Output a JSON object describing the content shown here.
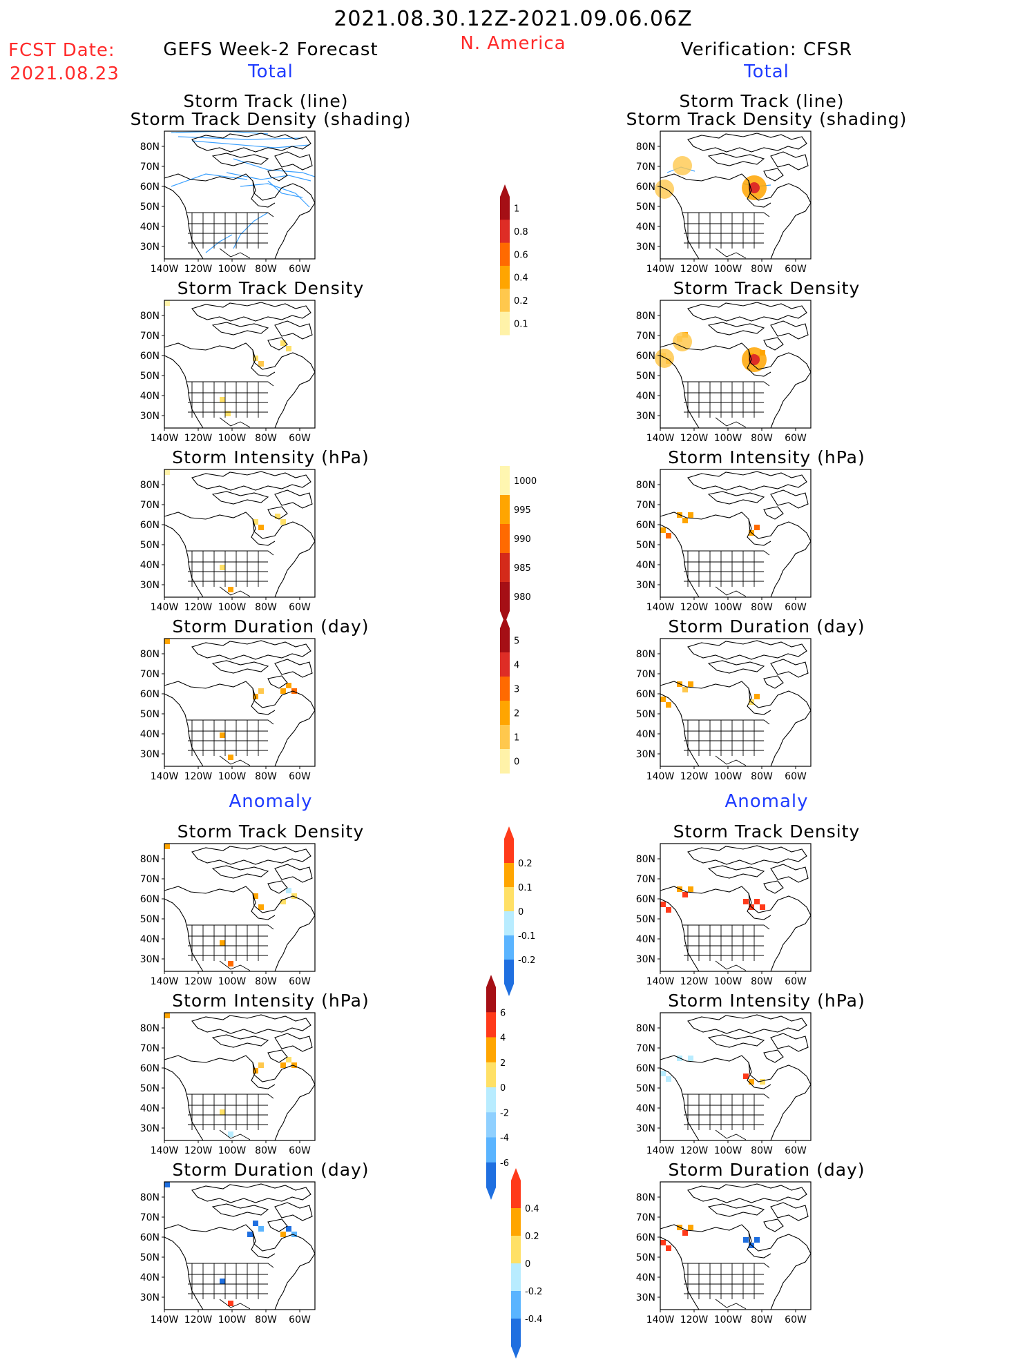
{
  "header": {
    "date_range": "2021.08.30.12Z-2021.09.06.06Z",
    "region": "N. America",
    "fcst_label": "FCST Date:",
    "fcst_date": "2021.08.23",
    "left_model": "GEFS Week-2 Forecast",
    "right_model": "Verification: CFSR",
    "total_label": "Total",
    "anomaly_label": "Anomaly"
  },
  "map_axes": {
    "lat_ticks": [
      "80N",
      "70N",
      "60N",
      "50N",
      "40N",
      "30N"
    ],
    "lon_ticks": [
      "140W",
      "120W",
      "100W",
      "80W",
      "60W"
    ]
  },
  "panel_titles": {
    "track_line": "Storm Track (line)",
    "track_shading": "Storm Track Density (shading)",
    "density": "Storm Track Density",
    "intensity": "Storm Intensity (hPa)",
    "duration": "Storm Duration (day)"
  },
  "colors": {
    "title_red": "#ff2a2a",
    "label_blue": "#1f3cff",
    "track_line": "#3aa0ff"
  },
  "chart_data": [
    {
      "type": "heatmap",
      "title": "Storm Track (line) / Storm Track Density (shading)",
      "column": "GEFS Week-2 Forecast",
      "section": "Total"
    },
    {
      "type": "heatmap",
      "title": "Storm Track Density",
      "column": "GEFS Week-2 Forecast",
      "section": "Total"
    },
    {
      "type": "heatmap",
      "title": "Storm Intensity (hPa)",
      "column": "GEFS Week-2 Forecast",
      "section": "Total"
    },
    {
      "type": "heatmap",
      "title": "Storm Duration (day)",
      "column": "GEFS Week-2 Forecast",
      "section": "Total"
    },
    {
      "type": "heatmap",
      "title": "Storm Track Density",
      "column": "GEFS Week-2 Forecast",
      "section": "Anomaly"
    },
    {
      "type": "heatmap",
      "title": "Storm Intensity (hPa)",
      "column": "GEFS Week-2 Forecast",
      "section": "Anomaly"
    },
    {
      "type": "heatmap",
      "title": "Storm Duration (day)",
      "column": "GEFS Week-2 Forecast",
      "section": "Anomaly"
    },
    {
      "type": "heatmap",
      "title": "Storm Track (line) / Storm Track Density (shading)",
      "column": "Verification: CFSR",
      "section": "Total"
    },
    {
      "type": "heatmap",
      "title": "Storm Track Density",
      "column": "Verification: CFSR",
      "section": "Total"
    },
    {
      "type": "heatmap",
      "title": "Storm Intensity (hPa)",
      "column": "Verification: CFSR",
      "section": "Total"
    },
    {
      "type": "heatmap",
      "title": "Storm Duration (day)",
      "column": "Verification: CFSR",
      "section": "Total"
    },
    {
      "type": "heatmap",
      "title": "Storm Track Density",
      "column": "Verification: CFSR",
      "section": "Anomaly"
    },
    {
      "type": "heatmap",
      "title": "Storm Intensity (hPa)",
      "column": "Verification: CFSR",
      "section": "Anomaly"
    },
    {
      "type": "heatmap",
      "title": "Storm Duration (day)",
      "column": "Verification: CFSR",
      "section": "Anomaly"
    }
  ],
  "colorbars": [
    {
      "name": "track-density-total",
      "labels": [
        "1",
        "0.8",
        "0.6",
        "0.4",
        "0.2",
        "0.1"
      ],
      "colors": [
        "#a50f15",
        "#de2d26",
        "#ff6a00",
        "#ffa500",
        "#ffc84d",
        "#fff2a8"
      ],
      "arrow_top": true,
      "arrow_bottom": false
    },
    {
      "name": "intensity-total",
      "labels": [
        "1000",
        "995",
        "990",
        "985",
        "980"
      ],
      "colors": [
        "#fff6b0",
        "#ffa500",
        "#ff6a00",
        "#d42a1a",
        "#a50f15"
      ],
      "arrow_top": false,
      "arrow_bottom": true
    },
    {
      "name": "duration-total",
      "labels": [
        "5",
        "4",
        "3",
        "2",
        "1",
        "0"
      ],
      "colors": [
        "#a50f15",
        "#de2d26",
        "#ff6a00",
        "#ffa500",
        "#ffc84d",
        "#fff2a8"
      ],
      "arrow_top": true,
      "arrow_bottom": false
    },
    {
      "name": "track-density-anom",
      "labels": [
        "0.2",
        "0.1",
        "0",
        "-0.1",
        "-0.2"
      ],
      "colors": [
        "#ff3a1a",
        "#ffa500",
        "#ffe066",
        "#b8ecff",
        "#5ab4ff",
        "#1f6fe0"
      ],
      "arrow_top": true,
      "arrow_bottom": true
    },
    {
      "name": "intensity-anom",
      "labels": [
        "6",
        "4",
        "2",
        "0",
        "-2",
        "-4",
        "-6"
      ],
      "colors": [
        "#a50f15",
        "#ff3a1a",
        "#ffa500",
        "#ffe066",
        "#b8ecff",
        "#8fd0ff",
        "#5ab4ff",
        "#1f6fe0"
      ],
      "arrow_top": true,
      "arrow_bottom": true
    },
    {
      "name": "duration-anom",
      "labels": [
        "0.4",
        "0.2",
        "0",
        "-0.2",
        "-0.4"
      ],
      "colors": [
        "#ff3a1a",
        "#ffa500",
        "#ffe066",
        "#b8ecff",
        "#5ab4ff",
        "#1f6fe0"
      ],
      "arrow_top": true,
      "arrow_bottom": true
    }
  ]
}
